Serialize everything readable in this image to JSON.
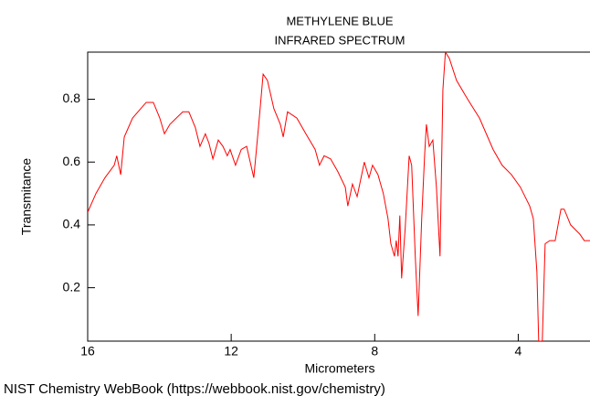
{
  "chart_data": {
    "type": "line",
    "title": "METHYLENE BLUE",
    "subtitle": "INFRARED SPECTRUM",
    "x_label": "Micrometers",
    "y_label": "Transmitance",
    "footer": "NIST Chemistry WebBook (https://webbook.nist.gov/chemistry)",
    "color": "#ff0000",
    "xlim": [
      16,
      2
    ],
    "ylim": [
      0.03,
      0.95
    ],
    "xticks": [
      16,
      12,
      8,
      4
    ],
    "yticks": [
      0.2,
      0.4,
      0.6,
      0.8
    ],
    "x": [
      16,
      15.77,
      15.52,
      15.26,
      15.19,
      15.08,
      14.98,
      14.75,
      14.37,
      14.17,
      13.99,
      13.86,
      13.71,
      13.35,
      13.18,
      13.0,
      12.87,
      12.72,
      12.62,
      12.51,
      12.36,
      12.23,
      12.11,
      12.03,
      11.88,
      11.72,
      11.57,
      11.37,
      11.24,
      11.11,
      10.99,
      10.81,
      10.63,
      10.55,
      10.43,
      10.17,
      9.92,
      9.66,
      9.54,
      9.41,
      9.23,
      9.03,
      8.82,
      8.75,
      8.62,
      8.49,
      8.29,
      8.16,
      8.06,
      7.91,
      7.76,
      7.63,
      7.55,
      7.45,
      7.4,
      7.35,
      7.3,
      7.25,
      7.15,
      7.04,
      6.97,
      6.87,
      6.79,
      6.69,
      6.61,
      6.56,
      6.48,
      6.38,
      6.28,
      6.18,
      6.1,
      6.03,
      5.92,
      5.72,
      5.41,
      5.08,
      4.7,
      4.45,
      4.19,
      3.94,
      3.68,
      3.58,
      3.48,
      3.43,
      3.33,
      3.25,
      3.12,
      2.97,
      2.81,
      2.72,
      2.54,
      2.28,
      2.16,
      2.0
    ],
    "values": [
      0.44,
      0.5,
      0.55,
      0.59,
      0.62,
      0.56,
      0.68,
      0.74,
      0.79,
      0.79,
      0.74,
      0.69,
      0.72,
      0.76,
      0.76,
      0.71,
      0.65,
      0.69,
      0.66,
      0.61,
      0.67,
      0.65,
      0.62,
      0.64,
      0.59,
      0.64,
      0.65,
      0.55,
      0.71,
      0.88,
      0.86,
      0.77,
      0.72,
      0.68,
      0.76,
      0.74,
      0.69,
      0.64,
      0.59,
      0.62,
      0.61,
      0.57,
      0.52,
      0.46,
      0.53,
      0.49,
      0.6,
      0.55,
      0.59,
      0.56,
      0.5,
      0.42,
      0.34,
      0.3,
      0.35,
      0.3,
      0.43,
      0.23,
      0.39,
      0.62,
      0.59,
      0.3,
      0.11,
      0.42,
      0.62,
      0.72,
      0.65,
      0.67,
      0.52,
      0.3,
      0.83,
      0.95,
      0.93,
      0.86,
      0.8,
      0.74,
      0.64,
      0.59,
      0.56,
      0.52,
      0.46,
      0.42,
      0.25,
      0.03,
      0.03,
      0.34,
      0.35,
      0.35,
      0.45,
      0.45,
      0.4,
      0.37,
      0.35,
      0.35
    ]
  }
}
